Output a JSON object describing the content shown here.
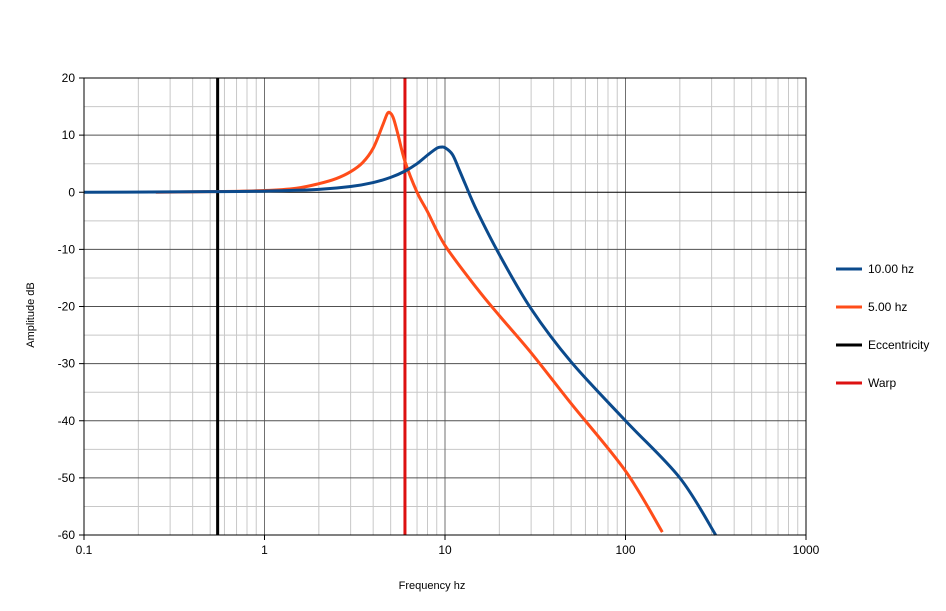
{
  "chart_data": {
    "type": "line",
    "xlabel": "Frequency hz",
    "ylabel": "Amplitude dB",
    "x_scale": "log",
    "xlim": [
      0.1,
      1000
    ],
    "ylim": [
      -60,
      20
    ],
    "x_ticks": [
      0.1,
      1,
      10,
      100,
      1000
    ],
    "x_tick_labels": [
      "0.1",
      "1",
      "10",
      "100",
      "1000"
    ],
    "y_ticks": [
      20,
      10,
      0,
      -10,
      -20,
      -30,
      -40,
      -50,
      -60
    ],
    "y_tick_labels": [
      "20",
      "10",
      "0",
      "-10",
      "-20",
      "-30",
      "-40",
      "-50",
      "-60"
    ],
    "grid": true,
    "legend_position": "right",
    "series": [
      {
        "name": "10.00 hz",
        "color": "#0b4a8c",
        "x": [
          0.1,
          0.5,
          1,
          2,
          3,
          4,
          5,
          6,
          7,
          8,
          9,
          9.5,
          10,
          11,
          12,
          13,
          15,
          20,
          30,
          50,
          100,
          200,
          316
        ],
        "y": [
          0,
          0.1,
          0.2,
          0.5,
          1.0,
          1.7,
          2.6,
          3.7,
          5.0,
          6.5,
          7.7,
          7.9,
          7.8,
          6.6,
          3.9,
          1.3,
          -3.2,
          -10.9,
          -20.4,
          -29.7,
          -40.0,
          -50.0,
          -60.0
        ]
      },
      {
        "name": "5.00 hz",
        "color": "#ff4d1a",
        "x": [
          0.25,
          0.5,
          1,
          1.5,
          2,
          2.5,
          3,
          3.5,
          4,
          4.5,
          4.8,
          5,
          5.2,
          5.5,
          6,
          7,
          8,
          10,
          15,
          20,
          30,
          50,
          100,
          160
        ],
        "y": [
          0,
          0.1,
          0.3,
          0.7,
          1.5,
          2.4,
          3.6,
          5.2,
          7.7,
          11.6,
          13.8,
          13.8,
          12.8,
          10.0,
          5.4,
          0.0,
          -3.4,
          -9.3,
          -16.8,
          -21.6,
          -28.1,
          -37.0,
          -48.8,
          -59.5
        ]
      },
      {
        "name": "Eccentricity",
        "color": "#000000",
        "type": "vertical_line",
        "x": [
          0.55,
          0.55
        ],
        "y": [
          -60,
          20
        ]
      },
      {
        "name": "Warp",
        "color": "#dd1111",
        "type": "vertical_line",
        "x": [
          6,
          6
        ],
        "y": [
          -60,
          20
        ]
      }
    ]
  }
}
